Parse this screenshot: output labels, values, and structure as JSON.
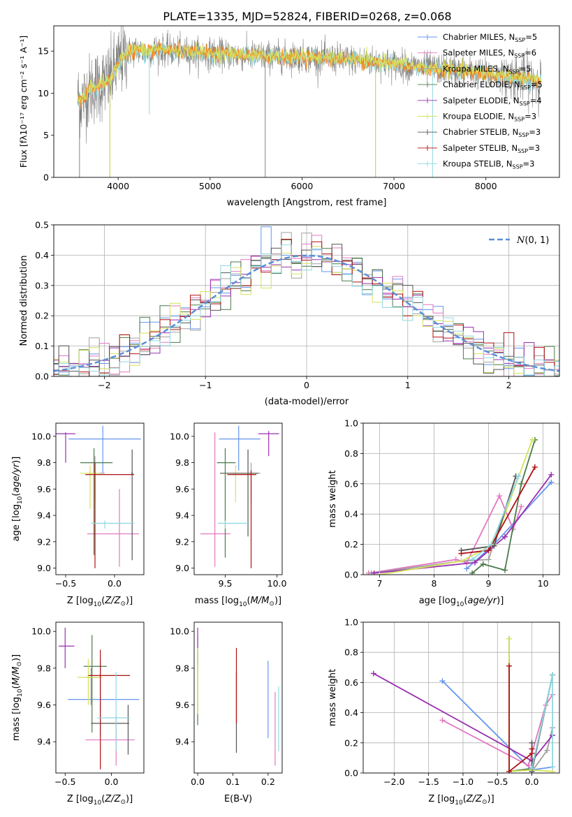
{
  "figure": {
    "title": "PLATE=1335, MJD=52824, FIBERID=0268, z=0.068"
  },
  "models": [
    {
      "label": "Chabrier MILES, N_SSP=5",
      "base": "Chabrier MILES, N",
      "sub": "SSP",
      "tail": "=5",
      "color": "#6495ed"
    },
    {
      "label": "Salpeter MILES, N_SSP=6",
      "base": "Salpeter MILES, N",
      "sub": "SSP",
      "tail": "=6",
      "color": "#e377c2"
    },
    {
      "label": "Kroupa MILES, N_SSP=5",
      "base": "Kroupa MILES, N",
      "sub": "SSP",
      "tail": "=5",
      "color": "#a0a0a0"
    },
    {
      "label": "Chabrier ELODIE, N_SSP=5",
      "base": "Chabrier ELODIE, N",
      "sub": "SSP",
      "tail": "=5",
      "color": "#4a7a4a"
    },
    {
      "label": "Salpeter ELODIE, N_SSP=4",
      "base": "Salpeter ELODIE, N",
      "sub": "SSP",
      "tail": "=4",
      "color": "#9a2fb0"
    },
    {
      "label": "Kroupa ELODIE, N_SSP=3",
      "base": "Kroupa ELODIE, N",
      "sub": "SSP",
      "tail": "=3",
      "color": "#d4e35a"
    },
    {
      "label": "Chabrier STELIB, N_SSP=3",
      "base": "Chabrier STELIB, N",
      "sub": "SSP",
      "tail": "=3",
      "color": "#555555"
    },
    {
      "label": "Salpeter STELIB, N_SSP=3",
      "base": "Salpeter STELIB, N",
      "sub": "SSP",
      "tail": "=3",
      "color": "#b01010"
    },
    {
      "label": "Kroupa STELIB, N_SSP=3",
      "base": "Kroupa STELIB, N",
      "sub": "SSP",
      "tail": "=3",
      "color": "#8fd8e0"
    }
  ],
  "chart_data": [
    {
      "id": "spectrum",
      "type": "line",
      "xlabel": "wavelength [Angstrom, rest frame]",
      "ylabel": "Flux [fλ10⁻¹⁷ erg cm⁻² s⁻¹ A⁻¹]",
      "xlim": [
        3300,
        8800
      ],
      "ylim": [
        0,
        18
      ],
      "xticks": [
        4000,
        5000,
        6000,
        7000,
        8000
      ],
      "yticks": [
        0,
        5,
        10,
        15
      ],
      "grid": false,
      "legend": "top-right",
      "data_color": "#808080",
      "model_colors": [
        "#8fd8e0",
        "#ff7f0e",
        "#d4e35a"
      ],
      "continuum": {
        "x": [
          3560,
          3600,
          3700,
          3800,
          3900,
          4000,
          4100,
          4200,
          4300,
          4400,
          4600,
          4800,
          5000,
          5200,
          5500,
          6000,
          6500,
          7000,
          7300,
          7600,
          8000,
          8400,
          8600
        ],
        "y": [
          9.5,
          9.0,
          10.5,
          11.0,
          11.5,
          13.5,
          14.8,
          15.2,
          14.8,
          15.2,
          15.0,
          14.8,
          14.7,
          14.6,
          14.4,
          14.3,
          14.0,
          13.5,
          13.0,
          12.8,
          12.3,
          11.8,
          11.5
        ]
      },
      "dips": [
        {
          "x": 3580,
          "y": 0
        },
        {
          "x": 3910,
          "y": 0
        },
        {
          "x": 4340,
          "y": 7.5
        },
        {
          "x": 5600,
          "y": 0
        },
        {
          "x": 6800,
          "y": 0
        },
        {
          "x": 7420,
          "y": 0
        }
      ]
    },
    {
      "id": "residuals",
      "type": "histogram",
      "xlabel": "(data-model)/error",
      "ylabel": "Normed distribution",
      "xlim": [
        -2.5,
        2.5
      ],
      "ylim": [
        0,
        0.5
      ],
      "xticks": [
        -2,
        -1,
        0,
        1,
        2
      ],
      "yticks": [
        0,
        0.1,
        0.2,
        0.3,
        0.4,
        0.5
      ],
      "grid": true,
      "legend": "top-right",
      "legend_label": "N(0,1)",
      "bin_width": 0.1,
      "gaussian": {
        "mu": 0,
        "sigma": 1
      }
    },
    {
      "id": "age-vs-Z",
      "type": "errorbar",
      "xlabel": "Z [log10(Z/Z⊙)]",
      "ylabel": "age  [log10(age/yr)]",
      "xlim": [
        -0.6,
        0.3
      ],
      "ylim": [
        8.95,
        10.1
      ],
      "xticks": [
        -0.5,
        0.0
      ],
      "yticks": [
        9.0,
        9.2,
        9.4,
        9.6,
        9.8,
        10.0
      ],
      "grid": false,
      "points": [
        {
          "m": 0,
          "x": -0.12,
          "y": 9.98,
          "xlo": -0.47,
          "xhi": 0.27,
          "ylo": 9.72,
          "yhi": 10.08
        },
        {
          "m": 1,
          "x": 0.05,
          "y": 9.26,
          "xlo": -0.28,
          "xhi": 0.25,
          "ylo": 9.01,
          "yhi": 9.6
        },
        {
          "m": 2,
          "x": -0.2,
          "y": 9.72,
          "xlo": -0.28,
          "xhi": -0.1,
          "ylo": 9.5,
          "yhi": 9.85
        },
        {
          "m": 3,
          "x": -0.21,
          "y": 9.8,
          "xlo": -0.35,
          "xhi": -0.02,
          "ylo": 9.1,
          "yhi": 9.91
        },
        {
          "m": 4,
          "x": -0.5,
          "y": 10.02,
          "xlo": -0.6,
          "xhi": -0.4,
          "ylo": 9.8,
          "yhi": 10.03
        },
        {
          "m": 5,
          "x": -0.25,
          "y": 9.72,
          "xlo": -0.35,
          "xhi": -0.15,
          "ylo": 9.45,
          "yhi": 9.78
        },
        {
          "m": 6,
          "x": 0.18,
          "y": 9.72,
          "xlo": 0.17,
          "xhi": 0.19,
          "ylo": 9.06,
          "yhi": 9.9
        },
        {
          "m": 7,
          "x": -0.2,
          "y": 9.71,
          "xlo": -0.3,
          "xhi": 0.2,
          "ylo": 9.0,
          "yhi": 9.8
        },
        {
          "m": 8,
          "x": -0.1,
          "y": 9.34,
          "xlo": -0.24,
          "xhi": 0.2,
          "ylo": 9.3,
          "yhi": 9.36
        }
      ]
    },
    {
      "id": "age-vs-mass",
      "type": "errorbar",
      "xlabel": "mass [log10(M/M⊙)]",
      "ylabel": "",
      "xlim": [
        9.2,
        10.05
      ],
      "ylim": [
        8.95,
        10.1
      ],
      "xticks": [
        9.5,
        10.0
      ],
      "yticks": [
        9.0,
        9.2,
        9.4,
        9.6,
        9.8,
        10.0
      ],
      "grid": false,
      "points": [
        {
          "m": 0,
          "x": 9.63,
          "y": 9.98,
          "xlo": 9.44,
          "xhi": 9.84,
          "ylo": 9.74,
          "yhi": 10.08
        },
        {
          "m": 1,
          "x": 9.4,
          "y": 9.26,
          "xlo": 9.26,
          "xhi": 9.55,
          "ylo": 9.01,
          "yhi": 10.03
        },
        {
          "m": 2,
          "x": 9.75,
          "y": 9.72,
          "xlo": 9.56,
          "xhi": 9.84,
          "ylo": 9.5,
          "yhi": 9.8
        },
        {
          "m": 3,
          "x": 9.5,
          "y": 9.8,
          "xlo": 9.42,
          "xhi": 9.6,
          "ylo": 9.08,
          "yhi": 9.91
        },
        {
          "m": 4,
          "x": 9.92,
          "y": 10.02,
          "xlo": 9.82,
          "xhi": 10.02,
          "ylo": 9.85,
          "yhi": 10.04
        },
        {
          "m": 5,
          "x": 9.6,
          "y": 9.72,
          "xlo": 9.45,
          "xhi": 9.8,
          "ylo": 9.5,
          "yhi": 9.78
        },
        {
          "m": 6,
          "x": 9.72,
          "y": 9.72,
          "xlo": 9.45,
          "xhi": 9.82,
          "ylo": 9.24,
          "yhi": 9.9
        },
        {
          "m": 7,
          "x": 9.75,
          "y": 9.71,
          "xlo": 9.52,
          "xhi": 9.8,
          "ylo": 9.0,
          "yhi": 9.74
        },
        {
          "m": 8,
          "x": 9.5,
          "y": 9.34,
          "xlo": 9.43,
          "xhi": 9.72,
          "ylo": 9.3,
          "yhi": 9.36
        }
      ]
    },
    {
      "id": "weight-vs-age",
      "type": "line",
      "xlabel": "age  [log10(age/yr)]",
      "ylabel": "mass weight",
      "xlim": [
        6.7,
        10.3
      ],
      "ylim": [
        0,
        1.0
      ],
      "xticks": [
        7,
        8,
        9,
        10
      ],
      "yticks": [
        0,
        0.2,
        0.4,
        0.6,
        0.8,
        1.0
      ],
      "grid": true,
      "series": [
        {
          "m": 0,
          "x": [
            8.6,
            9.1,
            10.15
          ],
          "y": [
            0.04,
            0.2,
            0.61
          ]
        },
        {
          "m": 1,
          "x": [
            6.8,
            8.4,
            8.6,
            9.2,
            9.45,
            9.6
          ],
          "y": [
            0.01,
            0.1,
            0.08,
            0.52,
            0.3,
            0.45
          ]
        },
        {
          "m": 2,
          "x": [
            6.85,
            8.5,
            9.0,
            9.5
          ],
          "y": [
            0.01,
            0.09,
            0.1,
            0.65
          ]
        },
        {
          "m": 3,
          "x": [
            8.7,
            8.9,
            9.3,
            9.6,
            9.85
          ],
          "y": [
            0.01,
            0.07,
            0.03,
            0.6,
            0.89
          ]
        },
        {
          "m": 4,
          "x": [
            6.9,
            8.75,
            9.3,
            10.15
          ],
          "y": [
            0.01,
            0.08,
            0.25,
            0.66
          ]
        },
        {
          "m": 5,
          "x": [
            7.0,
            8.5,
            9.1,
            9.8
          ],
          "y": [
            0.0,
            0.09,
            0.2,
            0.89
          ]
        },
        {
          "m": 6,
          "x": [
            8.5,
            9.1,
            9.5
          ],
          "y": [
            0.16,
            0.19,
            0.65
          ]
        },
        {
          "m": 7,
          "x": [
            8.5,
            9.0,
            9.85
          ],
          "y": [
            0.14,
            0.16,
            0.71
          ]
        },
        {
          "m": 8,
          "x": [
            8.7,
            9.05,
            9.55
          ],
          "y": [
            0.1,
            0.2,
            0.65
          ]
        }
      ]
    },
    {
      "id": "mass-vs-Z",
      "type": "errorbar",
      "xlabel": "Z [log10(Z/Z⊙)]",
      "ylabel": "mass [log10(M/M⊙)]",
      "xlim": [
        -0.6,
        0.35
      ],
      "ylim": [
        9.23,
        10.05
      ],
      "xticks": [
        -0.5,
        0.0
      ],
      "yticks": [
        9.4,
        9.6,
        9.8,
        10.0
      ],
      "grid": false,
      "points": [
        {
          "m": 0,
          "x": -0.12,
          "y": 9.63,
          "xlo": -0.47,
          "xhi": 0.3,
          "ylo": 9.43,
          "yhi": 9.84
        },
        {
          "m": 1,
          "x": 0.05,
          "y": 9.41,
          "xlo": -0.28,
          "xhi": 0.25,
          "ylo": 9.27,
          "yhi": 9.54
        },
        {
          "m": 2,
          "x": -0.22,
          "y": 9.75,
          "xlo": -0.28,
          "xhi": -0.12,
          "ylo": 9.6,
          "yhi": 9.8
        },
        {
          "m": 3,
          "x": -0.21,
          "y": 9.81,
          "xlo": -0.3,
          "xhi": -0.05,
          "ylo": 9.45,
          "yhi": 9.98
        },
        {
          "m": 4,
          "x": -0.5,
          "y": 9.92,
          "xlo": -0.57,
          "xhi": -0.4,
          "ylo": 9.8,
          "yhi": 10.02
        },
        {
          "m": 5,
          "x": -0.25,
          "y": 9.75,
          "xlo": -0.37,
          "xhi": -0.1,
          "ylo": 9.6,
          "yhi": 9.85
        },
        {
          "m": 6,
          "x": 0.18,
          "y": 9.5,
          "xlo": -0.22,
          "xhi": 0.19,
          "ylo": 9.33,
          "yhi": 9.6
        },
        {
          "m": 7,
          "x": -0.12,
          "y": 9.76,
          "xlo": -0.25,
          "xhi": 0.2,
          "ylo": 9.25,
          "yhi": 9.9
        },
        {
          "m": 8,
          "x": 0.05,
          "y": 9.53,
          "xlo": -0.15,
          "xhi": 0.2,
          "ylo": 9.35,
          "yhi": 9.78
        }
      ]
    },
    {
      "id": "mass-vs-EBV",
      "type": "errorbar",
      "xlabel": "E(B-V)",
      "ylabel": "",
      "xlim": [
        -0.01,
        0.24
      ],
      "ylim": [
        9.23,
        10.05
      ],
      "xticks": [
        0.0,
        0.1,
        0.2
      ],
      "yticks": [
        9.4,
        9.6,
        9.8,
        10.0
      ],
      "grid": false,
      "points": [
        {
          "m": 0,
          "x": 0.2,
          "y": 9.63,
          "xlo": 0.2,
          "xhi": 0.2,
          "ylo": 9.42,
          "yhi": 9.84
        },
        {
          "m": 1,
          "x": 0.22,
          "y": 9.47,
          "xlo": 0.22,
          "xhi": 0.22,
          "ylo": 9.27,
          "yhi": 9.67
        },
        {
          "m": 2,
          "x": 0.0,
          "y": 9.75,
          "xlo": 0.0,
          "xhi": 0.0,
          "ylo": 9.55,
          "yhi": 9.97
        },
        {
          "m": 3,
          "x": 0.0,
          "y": 9.7,
          "xlo": 0.0,
          "xhi": 0.0,
          "ylo": 9.49,
          "yhi": 9.9
        },
        {
          "m": 4,
          "x": 0.0,
          "y": 9.92,
          "xlo": 0.0,
          "xhi": 0.0,
          "ylo": 9.82,
          "yhi": 10.02
        },
        {
          "m": 5,
          "x": 0.0,
          "y": 9.75,
          "xlo": 0.0,
          "xhi": 0.0,
          "ylo": 9.55,
          "yhi": 9.91
        },
        {
          "m": 6,
          "x": 0.11,
          "y": 9.55,
          "xlo": 0.11,
          "xhi": 0.11,
          "ylo": 9.34,
          "yhi": 9.78
        },
        {
          "m": 7,
          "x": 0.11,
          "y": 9.7,
          "xlo": 0.11,
          "xhi": 0.11,
          "ylo": 9.5,
          "yhi": 9.91
        },
        {
          "m": 8,
          "x": 0.23,
          "y": 9.5,
          "xlo": 0.23,
          "xhi": 0.23,
          "ylo": 9.35,
          "yhi": 9.7
        }
      ]
    },
    {
      "id": "weight-vs-Z",
      "type": "line",
      "xlabel": "Z [log10(Z/Z⊙)]",
      "ylabel": "mass weight",
      "xlim": [
        -2.45,
        0.4
      ],
      "ylim": [
        0,
        1.0
      ],
      "xticks": [
        -2.0,
        -1.5,
        -1.0,
        -0.5,
        0.0
      ],
      "yticks": [
        0,
        0.2,
        0.4,
        0.6,
        0.8,
        1.0
      ],
      "grid": true,
      "series": [
        {
          "m": 0,
          "x": [
            -1.3,
            0.0,
            0.3
          ],
          "y": [
            0.61,
            0.02,
            0.04
          ]
        },
        {
          "m": 1,
          "x": [
            -1.3,
            -0.05,
            0.2,
            0.3
          ],
          "y": [
            0.35,
            0.05,
            0.45,
            0.52
          ]
        },
        {
          "m": 2,
          "x": [
            0.0,
            0.22,
            0.3
          ],
          "y": [
            0.01,
            0.15,
            0.3
          ]
        },
        {
          "m": 3,
          "x": [
            -0.33,
            -0.33,
            0.0,
            0.3
          ],
          "y": [
            0.89,
            0.01,
            0.03,
            0.65
          ]
        },
        {
          "m": 4,
          "x": [
            -2.3,
            0.0,
            0.3
          ],
          "y": [
            0.66,
            0.08,
            0.25
          ]
        },
        {
          "m": 5,
          "x": [
            -0.33,
            -0.33,
            0.0,
            0.3
          ],
          "y": [
            0.89,
            0.01,
            0.02,
            0.01
          ]
        },
        {
          "m": 6,
          "x": [
            0.0,
            0.0,
            0.3
          ],
          "y": [
            0.2,
            0.01,
            0.65
          ]
        },
        {
          "m": 7,
          "x": [
            -0.33,
            -0.33,
            0.0,
            0.0
          ],
          "y": [
            0.71,
            0.01,
            0.13,
            0.16
          ]
        },
        {
          "m": 8,
          "x": [
            0.0,
            0.3,
            0.3
          ],
          "y": [
            0.03,
            0.65,
            0.04
          ]
        }
      ]
    }
  ]
}
